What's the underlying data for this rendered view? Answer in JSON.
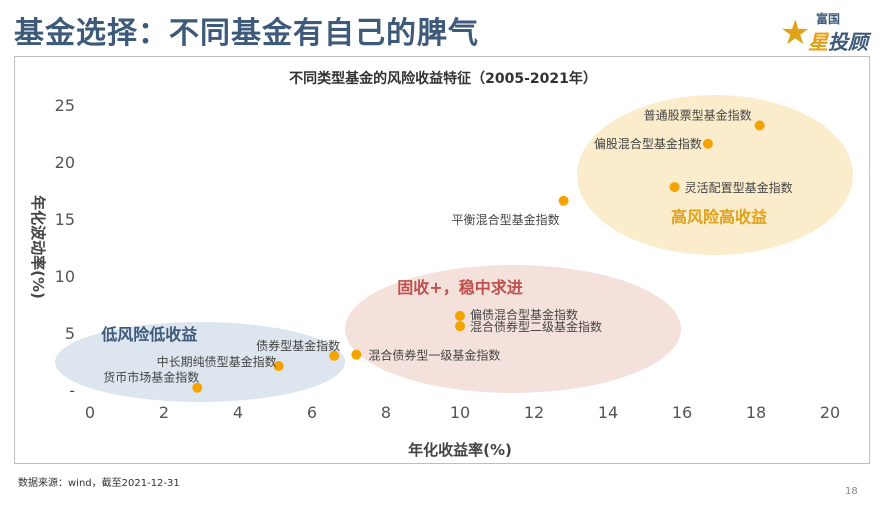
{
  "slide": {
    "title": "基金选择：不同基金有自己的脾气",
    "logo_top": "富国",
    "logo_main_a": "星",
    "logo_main_b": "投顾",
    "source": "数据来源：wind，截至2021-12-31",
    "page_number": "18"
  },
  "colors": {
    "title": "#3d5a7a",
    "point": "#f5a300",
    "low_ellipse": "#dde6ef",
    "mid_ellipse": "#f4e1db",
    "high_ellipse": "#fbeccb",
    "low_label": "#3d5a7a",
    "mid_label": "#c0504d",
    "high_label": "#e0a21a"
  },
  "chart_data": {
    "type": "scatter",
    "title": "不同类型基金的风险收益特征（2005-2021年）",
    "xlabel": "年化收益率(%)",
    "ylabel": "年化波动率(%)",
    "xlim": [
      0,
      20
    ],
    "ylim": [
      0,
      25
    ],
    "xticks": [
      "0",
      "2",
      "4",
      "6",
      "8",
      "10",
      "12",
      "14",
      "16",
      "18",
      "20"
    ],
    "yticks": [
      "-",
      "5",
      "10",
      "15",
      "20",
      "25"
    ],
    "grid": false,
    "points": [
      {
        "name": "普通股票型基金指数",
        "x": 18.1,
        "y": 23.2
      },
      {
        "name": "偏股混合型基金指数",
        "x": 16.7,
        "y": 21.6
      },
      {
        "name": "灵活配置型基金指数",
        "x": 15.8,
        "y": 17.8
      },
      {
        "name": "平衡混合型基金指数",
        "x": 12.8,
        "y": 16.6
      },
      {
        "name": "偏债混合型基金指数",
        "x": 10.0,
        "y": 6.5
      },
      {
        "name": "混合债券型二级基金指数",
        "x": 10.0,
        "y": 5.6
      },
      {
        "name": "混合债券型一级基金指数",
        "x": 7.2,
        "y": 3.1
      },
      {
        "name": "债券型基金指数",
        "x": 6.6,
        "y": 3.0
      },
      {
        "name": "中长期纯债型基金指数",
        "x": 5.1,
        "y": 2.1
      },
      {
        "name": "货币市场基金指数",
        "x": 2.9,
        "y": 0.2
      }
    ],
    "annotations": [
      {
        "name": "低风险低收益",
        "x": 1.6,
        "y": 4.4
      },
      {
        "name": "固收+，稳中求进",
        "x": 10.0,
        "y": 8.5
      },
      {
        "name": "高风险高收益",
        "x": 17.0,
        "y": 14.7
      }
    ]
  }
}
